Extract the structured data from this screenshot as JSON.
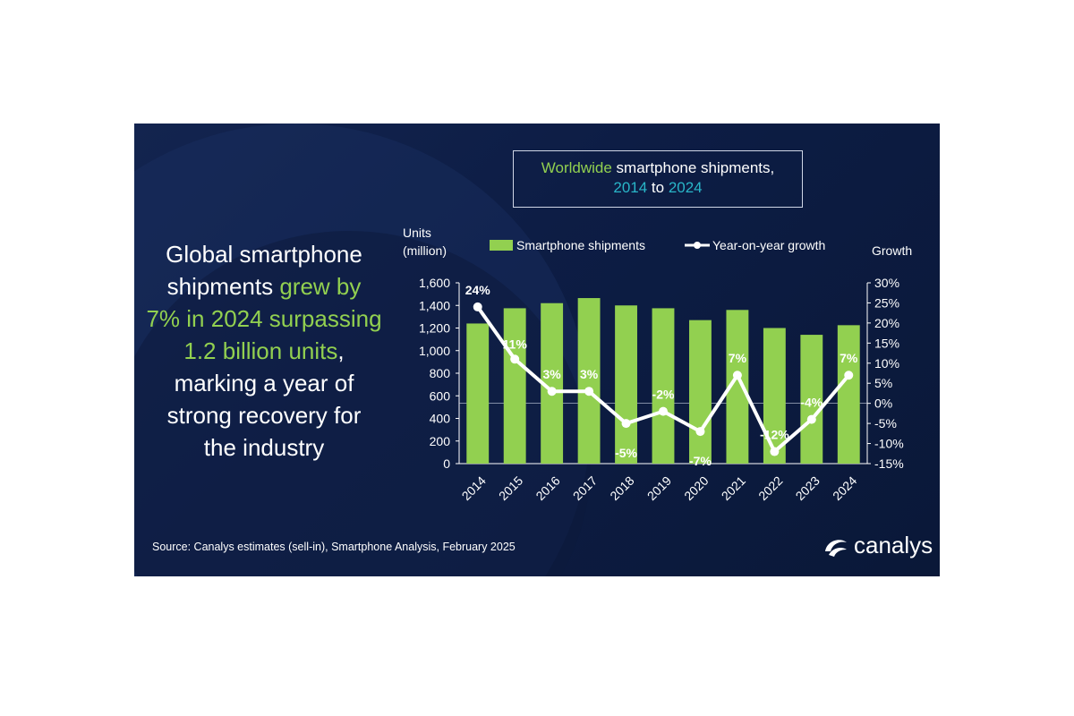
{
  "title": {
    "part1": "Worldwide",
    "part2": " smartphone shipments,",
    "year_start": "2014",
    "to": " to ",
    "year_end": "2024"
  },
  "headline": {
    "line1": "Global smartphone",
    "line2a": "shipments ",
    "line2b": "grew by",
    "line3": "7% in 2024 surpassing",
    "line4a": "1.2 billion units",
    "line4b": ",",
    "line5": "marking a year of",
    "line6": "strong recovery for",
    "line7": "the industry"
  },
  "source": "Source: Canalys estimates (sell-in), Smartphone Analysis, February 2025",
  "logo": {
    "text": "canalys",
    "icon": "canalys-swoosh-logo"
  },
  "colors": {
    "bar": "#92d050",
    "line": "#ffffff",
    "accent_green": "#92d050",
    "accent_teal": "#29b5c8"
  },
  "chart_data": {
    "type": "bar",
    "categories": [
      "2014",
      "2015",
      "2016",
      "2017",
      "2018",
      "2019",
      "2020",
      "2021",
      "2022",
      "2023",
      "2024"
    ],
    "series": [
      {
        "name": "Smartphone shipments",
        "type": "bar",
        "axis": "left",
        "values": [
          1240,
          1375,
          1420,
          1465,
          1400,
          1375,
          1270,
          1360,
          1200,
          1140,
          1225
        ]
      },
      {
        "name": "Year-on-year growth",
        "type": "line",
        "axis": "right",
        "values": [
          24,
          11,
          3,
          3,
          -5,
          -2,
          -7,
          7,
          -12,
          -4,
          7
        ],
        "labels": [
          "24%",
          "11%",
          "3%",
          "3%",
          "-5%",
          "-2%",
          "-7%",
          "7%",
          "-12%",
          "-4%",
          "7%"
        ]
      }
    ],
    "y_left": {
      "label_line1": "Units",
      "label_line2": "(million)",
      "min": 0,
      "max": 1600,
      "ticks": [
        "0",
        "200",
        "400",
        "600",
        "800",
        "1,000",
        "1,200",
        "1,400",
        "1,600"
      ]
    },
    "y_right": {
      "label": "Growth",
      "min": -15,
      "max": 30,
      "ticks": [
        "-15%",
        "-10%",
        "-5%",
        "0%",
        "5%",
        "10%",
        "15%",
        "20%",
        "25%",
        "30%"
      ]
    },
    "legend_position": "top",
    "grid": false
  }
}
